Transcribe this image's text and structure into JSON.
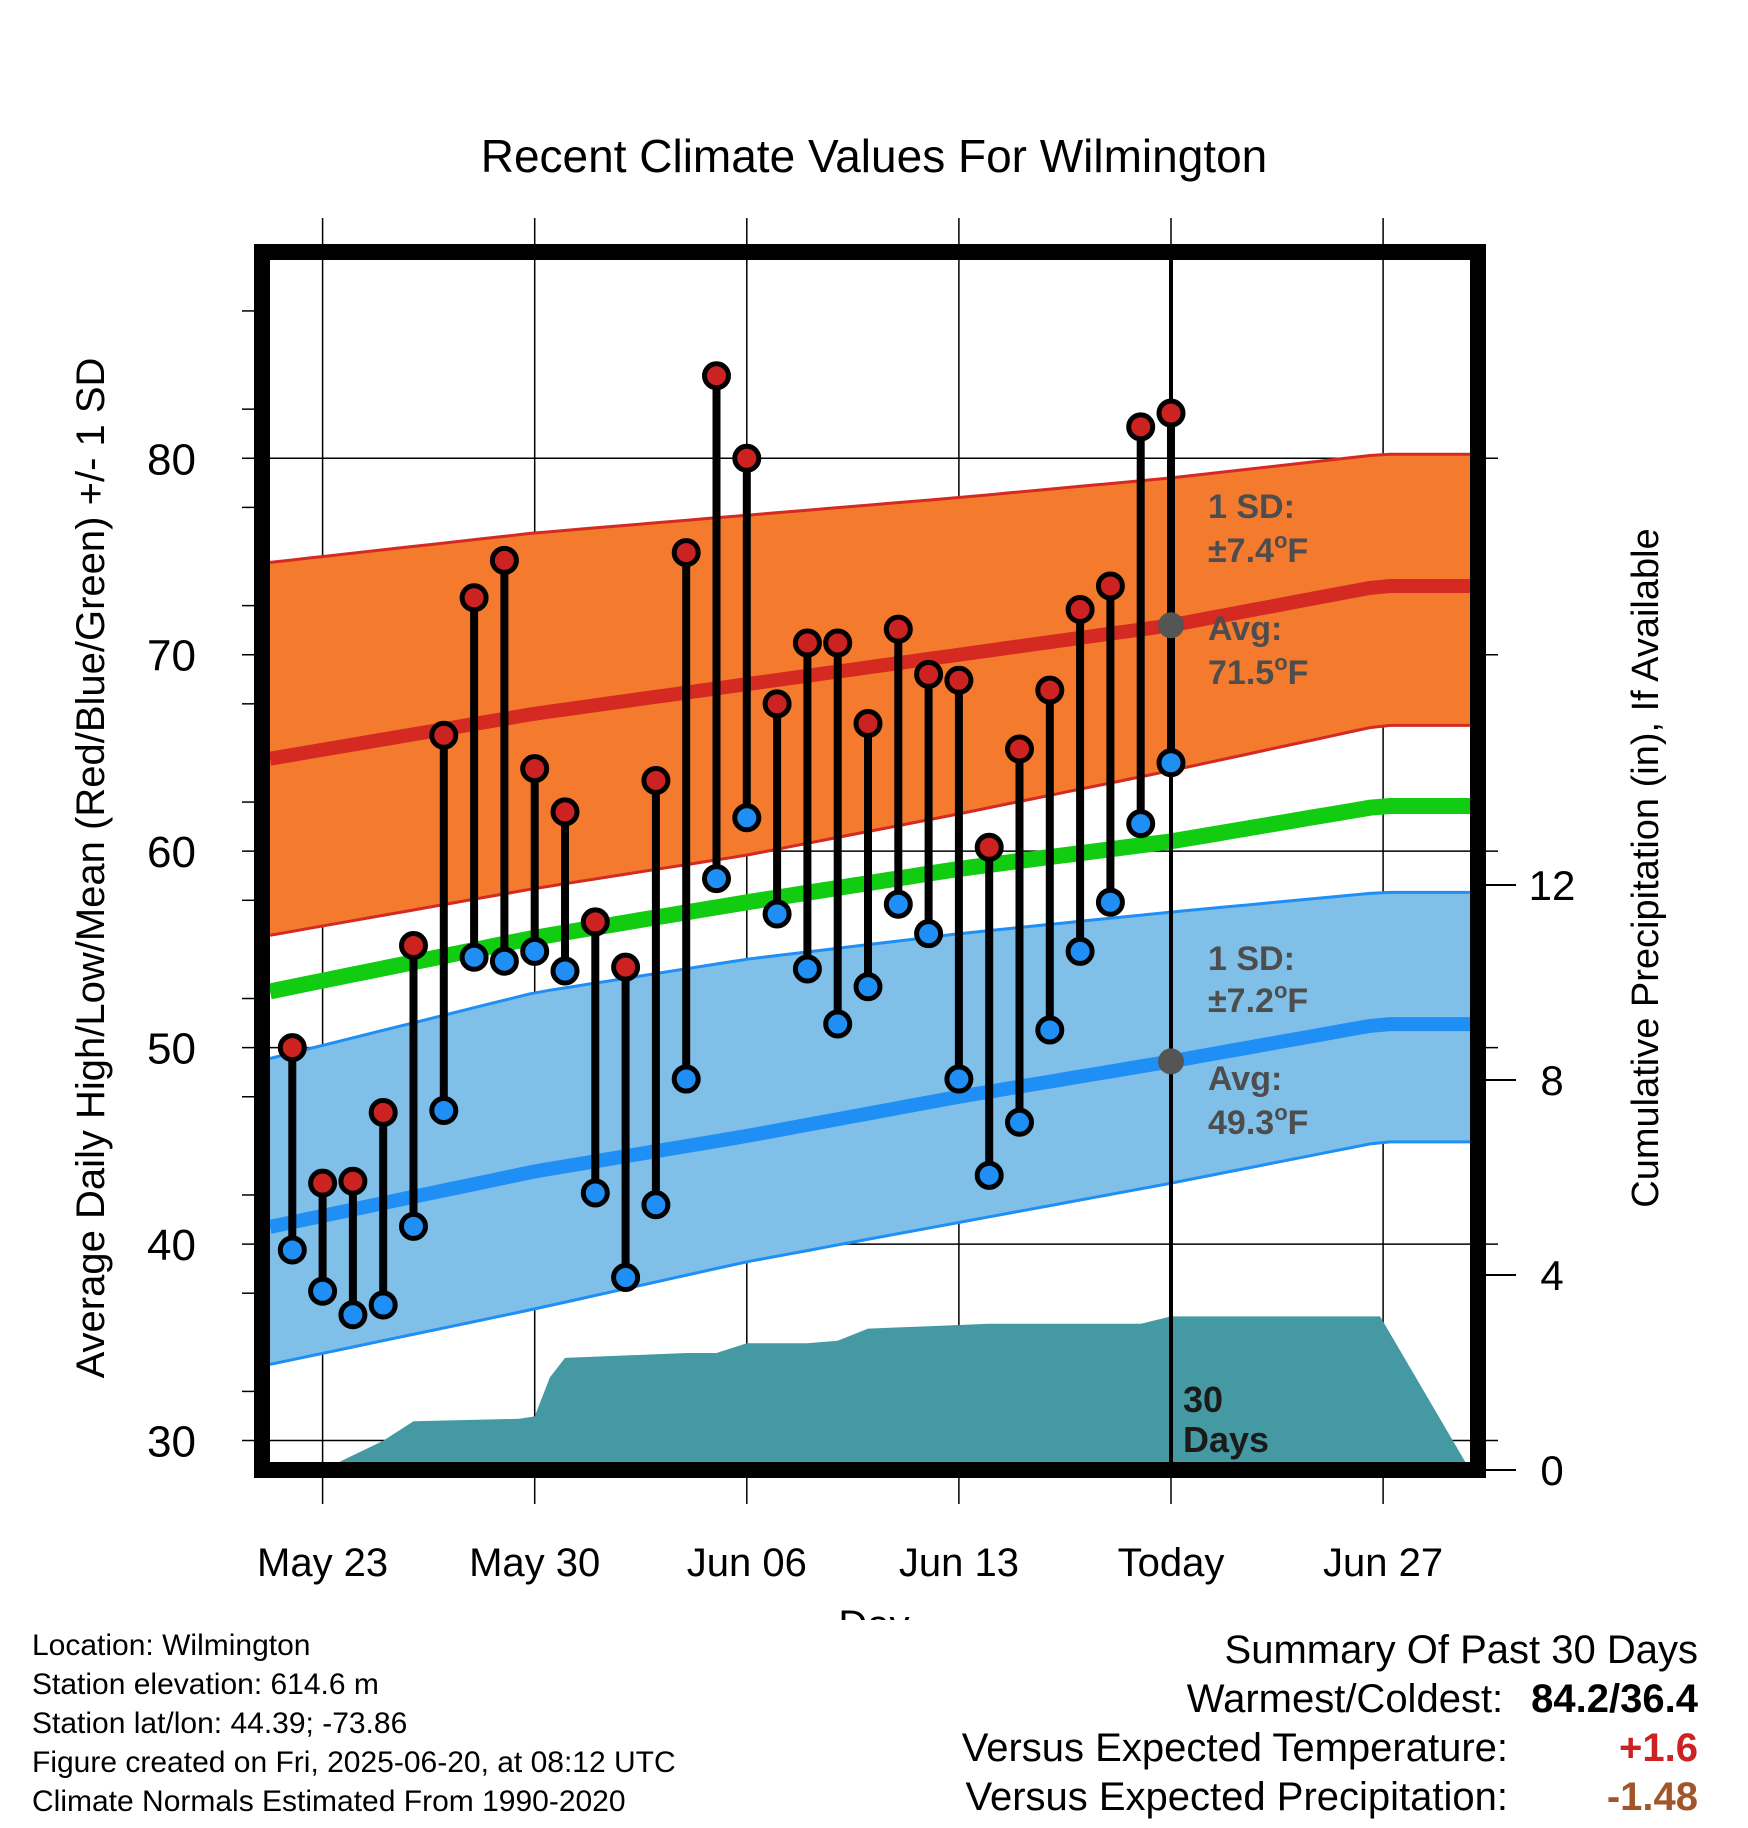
{
  "chart_data": {
    "type": "line",
    "title": "Recent Climate Values For Wilmington",
    "xlabel": "Day",
    "ylabel": "Average Daily High/Low/Mean (Red/Blue/Green) +/- 1 SD",
    "y2label": "Cumulative Precipitation (in), If Available",
    "ylim": [
      28.5,
      90.5
    ],
    "y2lim": [
      0,
      16
    ],
    "x_tick_labels": [
      "May 23",
      "May 30",
      "Jun 06",
      "Jun 13",
      "Today",
      "Jun 27"
    ],
    "x_tick_days": [
      2,
      9,
      16,
      23,
      30,
      37
    ],
    "y_ticks": [
      30,
      40,
      50,
      60,
      70,
      80
    ],
    "y2_ticks": [
      0,
      4,
      8,
      12
    ],
    "today_marker": {
      "label_line1": "30",
      "label_line2": "Days"
    },
    "days": [
      1,
      2,
      3,
      4,
      5,
      6,
      7,
      8,
      9,
      10,
      11,
      12,
      13,
      14,
      15,
      16,
      17,
      18,
      19,
      20,
      21,
      22,
      23,
      24,
      25,
      26,
      27,
      28,
      29,
      30
    ],
    "daily_high": [
      50.0,
      43.1,
      43.2,
      46.7,
      55.2,
      65.9,
      72.9,
      74.8,
      64.2,
      62.0,
      56.4,
      54.1,
      63.6,
      75.2,
      84.2,
      80.0,
      67.5,
      70.6,
      70.6,
      66.5,
      71.3,
      69.0,
      68.7,
      60.2,
      65.2,
      68.2,
      72.3,
      73.5,
      81.6,
      82.3
    ],
    "daily_low": [
      39.7,
      37.6,
      36.4,
      36.9,
      40.9,
      46.8,
      54.6,
      54.4,
      54.9,
      53.9,
      42.6,
      38.3,
      42.0,
      48.4,
      58.6,
      61.7,
      56.8,
      54.0,
      51.2,
      53.1,
      57.3,
      55.8,
      48.4,
      43.5,
      46.2,
      50.9,
      54.9,
      57.4,
      61.4,
      64.5
    ],
    "normal_high": {
      "x": [
        -0.9,
        9,
        16,
        23,
        30,
        36.9
      ],
      "mean": [
        64.4,
        67.0,
        68.5,
        70.0,
        71.5,
        73.5
      ],
      "upper": [
        74.5,
        76.2,
        77.1,
        78.0,
        79.0,
        80.2
      ],
      "lower": [
        55.4,
        58.1,
        59.8,
        61.9,
        64.1,
        66.4
      ]
    },
    "normal_mean": {
      "x": [
        -0.9,
        9,
        16,
        23,
        30,
        36.9
      ],
      "values": [
        52.5,
        55.6,
        57.4,
        59.1,
        60.5,
        62.3
      ]
    },
    "normal_low": {
      "x": [
        -0.9,
        9,
        16,
        23,
        30,
        36.9
      ],
      "mean": [
        40.5,
        43.7,
        45.5,
        47.5,
        49.3,
        51.2
      ],
      "upper": [
        49.0,
        52.8,
        54.5,
        55.8,
        56.9,
        57.9
      ],
      "lower": [
        33.5,
        36.7,
        39.1,
        41.1,
        43.1,
        45.2
      ]
    },
    "precipitation_cumulative": {
      "x": [
        1,
        2,
        3,
        4,
        5,
        8.5,
        9,
        9.5,
        10,
        14,
        15,
        15.5,
        16,
        18,
        19,
        20,
        22,
        24,
        29,
        30,
        36.9
      ],
      "values": [
        0,
        0,
        0.3,
        0.6,
        1.0,
        1.05,
        1.1,
        1.9,
        2.3,
        2.4,
        2.4,
        2.5,
        2.6,
        2.6,
        2.65,
        2.9,
        2.95,
        3.0,
        3.0,
        3.15,
        3.15
      ]
    },
    "annotations": {
      "high_sd_line1": "1 SD:",
      "high_sd_line2_prefix": "±7.4",
      "high_avg_line1": "Avg:",
      "high_avg_line2_prefix": "71.5",
      "high_avg_value": 71.5,
      "low_sd_line1": "1 SD:",
      "low_sd_line2_prefix": "±7.2",
      "low_avg_line1": "Avg:",
      "low_avg_line2_prefix": "49.3",
      "low_avg_value": 49.3,
      "degree_symbol": "o",
      "unit": "F"
    },
    "colors": {
      "high_band": "#f47a2e",
      "high_line": "#d42a22",
      "mean_line": "#11cc11",
      "low_band": "#80c0e8",
      "low_line": "#1f8ff5",
      "precip": "#4599a3",
      "high_dot": "#cc2222",
      "low_dot": "#1f8ff5",
      "annotation": "#4d4d4d"
    }
  },
  "info": {
    "location": "Location: Wilmington",
    "elevation": "Station elevation: 614.6 m",
    "latlon": "Station lat/lon: 44.39; -73.86",
    "created": "Figure created on Fri, 2025-06-20, at 08:12 UTC",
    "normals": "Climate Normals Estimated From 1990-2020"
  },
  "summary": {
    "title": "Summary Of Past 30 Days",
    "warm_cold_label": "Warmest/Coldest:",
    "warm_cold_value": "84.2/36.4",
    "temp_label": "Versus Expected Temperature:",
    "temp_value": "+1.6",
    "precip_label": "Versus Expected Precipitation:",
    "precip_value": "-1.48"
  }
}
